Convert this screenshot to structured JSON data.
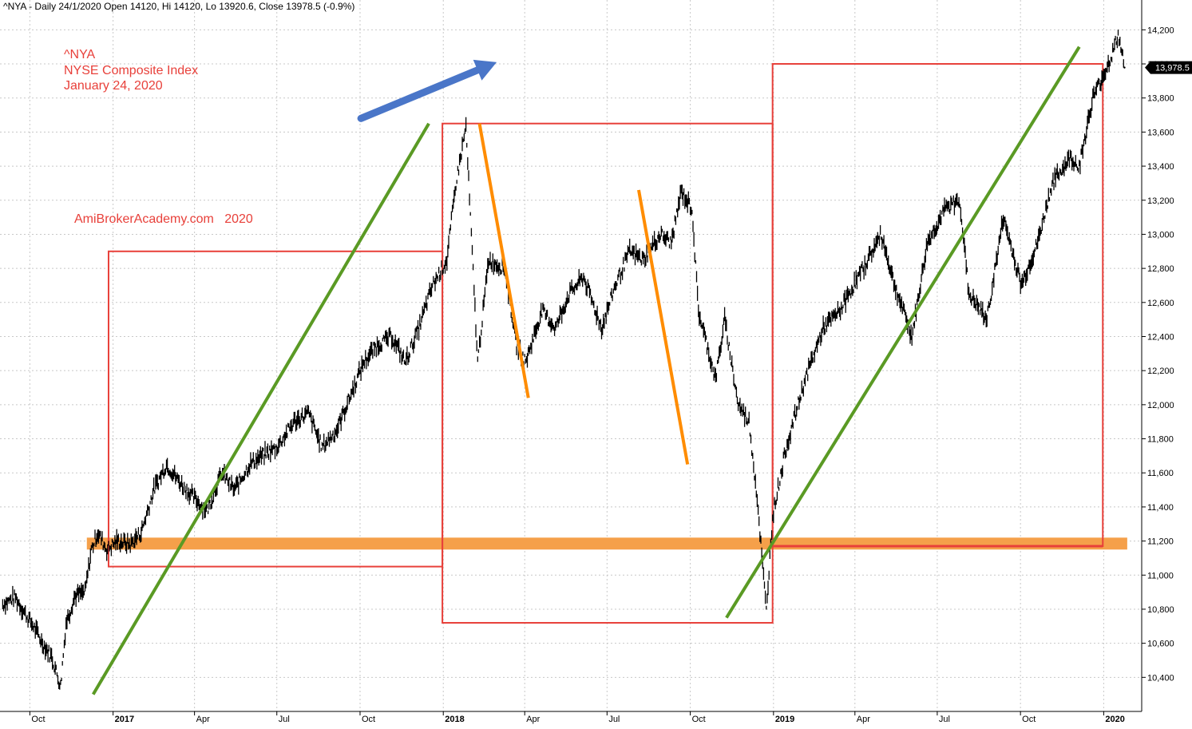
{
  "header": "^NYA - Daily 24/1/2020 Open 14120, Hi 14120, Lo 13920.6, Close 13978.5 (-0.9%)",
  "annotations": {
    "line1": "^NYA",
    "line2": "NYSE Composite Index",
    "line3": "January 24, 2020",
    "watermark": "AmiBrokerAcademy.com   2020"
  },
  "last_price_label": "13,978.5",
  "colors": {
    "price": "#000000",
    "box": "#e8403a",
    "trend_up": "#5a9a24",
    "trend_down": "#ff8c00",
    "support_band": "#f5a04a",
    "arrow": "#4a76c8",
    "label_bg": "#000000"
  },
  "chart_data": {
    "type": "line",
    "ylim": [
      10200,
      14300
    ],
    "y_ticks": [
      10400,
      10600,
      10800,
      11000,
      11200,
      11400,
      11600,
      11800,
      12000,
      12200,
      12400,
      12600,
      12800,
      13000,
      13200,
      13400,
      13600,
      13800,
      14000,
      14200
    ],
    "y_tick_labels": [
      "10,400",
      "10,600",
      "10,800",
      "11,000",
      "11,200",
      "11,400",
      "11,600",
      "11,800",
      "12,000",
      "12,200",
      "12,400",
      "12,600",
      "12,800",
      "13,000",
      "13,200",
      "13,400",
      "13,600",
      "13,800",
      "14,000",
      "14,200"
    ],
    "x_ticks": [
      {
        "label": "Oct",
        "date": "2016-10-01",
        "year": false
      },
      {
        "label": "2017",
        "date": "2017-01-01",
        "year": true
      },
      {
        "label": "Apr",
        "date": "2017-04-01",
        "year": false
      },
      {
        "label": "Jul",
        "date": "2017-07-01",
        "year": false
      },
      {
        "label": "Oct",
        "date": "2017-10-01",
        "year": false
      },
      {
        "label": "2018",
        "date": "2018-01-01",
        "year": true
      },
      {
        "label": "Apr",
        "date": "2018-04-01",
        "year": false
      },
      {
        "label": "Jul",
        "date": "2018-07-01",
        "year": false
      },
      {
        "label": "Oct",
        "date": "2018-10-01",
        "year": false
      },
      {
        "label": "2019",
        "date": "2019-01-01",
        "year": true
      },
      {
        "label": "Apr",
        "date": "2019-04-01",
        "year": false
      },
      {
        "label": "Jul",
        "date": "2019-07-01",
        "year": false
      },
      {
        "label": "Oct",
        "date": "2019-10-01",
        "year": false
      },
      {
        "label": "2020",
        "date": "2020-01-01",
        "year": true
      }
    ],
    "series": [
      {
        "values": [
          {
            "x": "2016-09-01",
            "y": 10830
          },
          {
            "x": "2016-09-15",
            "y": 10870
          },
          {
            "x": "2016-09-25",
            "y": 10780
          },
          {
            "x": "2016-10-05",
            "y": 10700
          },
          {
            "x": "2016-10-15",
            "y": 10600
          },
          {
            "x": "2016-10-25",
            "y": 10520
          },
          {
            "x": "2016-11-04",
            "y": 10350
          },
          {
            "x": "2016-11-10",
            "y": 10720
          },
          {
            "x": "2016-11-20",
            "y": 10880
          },
          {
            "x": "2016-12-01",
            "y": 10900
          },
          {
            "x": "2016-12-08",
            "y": 11150
          },
          {
            "x": "2016-12-15",
            "y": 11250
          },
          {
            "x": "2016-12-25",
            "y": 11150
          },
          {
            "x": "2017-01-05",
            "y": 11200
          },
          {
            "x": "2017-01-20",
            "y": 11180
          },
          {
            "x": "2017-02-01",
            "y": 11250
          },
          {
            "x": "2017-02-15",
            "y": 11500
          },
          {
            "x": "2017-03-01",
            "y": 11650
          },
          {
            "x": "2017-03-15",
            "y": 11550
          },
          {
            "x": "2017-04-01",
            "y": 11450
          },
          {
            "x": "2017-04-15",
            "y": 11380
          },
          {
            "x": "2017-05-01",
            "y": 11600
          },
          {
            "x": "2017-05-15",
            "y": 11500
          },
          {
            "x": "2017-06-01",
            "y": 11650
          },
          {
            "x": "2017-06-15",
            "y": 11700
          },
          {
            "x": "2017-07-01",
            "y": 11750
          },
          {
            "x": "2017-07-20",
            "y": 11900
          },
          {
            "x": "2017-08-05",
            "y": 11950
          },
          {
            "x": "2017-08-20",
            "y": 11750
          },
          {
            "x": "2017-09-05",
            "y": 11850
          },
          {
            "x": "2017-09-20",
            "y": 12050
          },
          {
            "x": "2017-10-05",
            "y": 12250
          },
          {
            "x": "2017-10-20",
            "y": 12350
          },
          {
            "x": "2017-11-05",
            "y": 12400
          },
          {
            "x": "2017-11-20",
            "y": 12250
          },
          {
            "x": "2017-12-05",
            "y": 12450
          },
          {
            "x": "2017-12-20",
            "y": 12700
          },
          {
            "x": "2018-01-05",
            "y": 12850
          },
          {
            "x": "2018-01-15",
            "y": 13300
          },
          {
            "x": "2018-01-26",
            "y": 13630
          },
          {
            "x": "2018-02-08",
            "y": 12250
          },
          {
            "x": "2018-02-20",
            "y": 12850
          },
          {
            "x": "2018-03-10",
            "y": 12800
          },
          {
            "x": "2018-03-23",
            "y": 12350
          },
          {
            "x": "2018-04-02",
            "y": 12250
          },
          {
            "x": "2018-04-20",
            "y": 12550
          },
          {
            "x": "2018-05-05",
            "y": 12450
          },
          {
            "x": "2018-05-20",
            "y": 12650
          },
          {
            "x": "2018-06-05",
            "y": 12750
          },
          {
            "x": "2018-06-25",
            "y": 12450
          },
          {
            "x": "2018-07-10",
            "y": 12700
          },
          {
            "x": "2018-07-26",
            "y": 12900
          },
          {
            "x": "2018-08-10",
            "y": 12850
          },
          {
            "x": "2018-08-29",
            "y": 13000
          },
          {
            "x": "2018-09-10",
            "y": 12950
          },
          {
            "x": "2018-09-21",
            "y": 13250
          },
          {
            "x": "2018-10-03",
            "y": 13150
          },
          {
            "x": "2018-10-10",
            "y": 12550
          },
          {
            "x": "2018-10-29",
            "y": 12150
          },
          {
            "x": "2018-11-08",
            "y": 12500
          },
          {
            "x": "2018-11-23",
            "y": 12000
          },
          {
            "x": "2018-12-05",
            "y": 11900
          },
          {
            "x": "2018-12-14",
            "y": 11450
          },
          {
            "x": "2018-12-24",
            "y": 10790
          },
          {
            "x": "2018-12-31",
            "y": 11350
          },
          {
            "x": "2019-01-15",
            "y": 11750
          },
          {
            "x": "2019-02-05",
            "y": 12150
          },
          {
            "x": "2019-02-25",
            "y": 12450
          },
          {
            "x": "2019-03-15",
            "y": 12550
          },
          {
            "x": "2019-04-10",
            "y": 12800
          },
          {
            "x": "2019-04-30",
            "y": 13000
          },
          {
            "x": "2019-05-15",
            "y": 12700
          },
          {
            "x": "2019-06-03",
            "y": 12400
          },
          {
            "x": "2019-06-20",
            "y": 12950
          },
          {
            "x": "2019-07-10",
            "y": 13150
          },
          {
            "x": "2019-07-26",
            "y": 13200
          },
          {
            "x": "2019-08-05",
            "y": 12650
          },
          {
            "x": "2019-08-25",
            "y": 12500
          },
          {
            "x": "2019-09-12",
            "y": 13100
          },
          {
            "x": "2019-10-02",
            "y": 12700
          },
          {
            "x": "2019-10-20",
            "y": 12950
          },
          {
            "x": "2019-11-05",
            "y": 13300
          },
          {
            "x": "2019-11-25",
            "y": 13450
          },
          {
            "x": "2019-12-05",
            "y": 13400
          },
          {
            "x": "2019-12-20",
            "y": 13800
          },
          {
            "x": "2020-01-02",
            "y": 13950
          },
          {
            "x": "2020-01-10",
            "y": 14050
          },
          {
            "x": "2020-01-17",
            "y": 14170
          },
          {
            "x": "2020-01-24",
            "y": 13978.5
          }
        ]
      }
    ],
    "boxes": [
      {
        "x1": "2016-12-27",
        "x2": "2017-12-31",
        "y1": 11050,
        "y2": 12900
      },
      {
        "x1": "2017-12-31",
        "x2": "2018-12-31",
        "y1": 10720,
        "y2": 13650
      },
      {
        "x1": "2018-12-31",
        "x2": "2019-12-31",
        "y1": 11170,
        "y2": 14000
      }
    ],
    "support_band": {
      "x1": "2016-12-03",
      "x2": "2020-01-27",
      "y1": 11150,
      "y2": 11220
    },
    "trendlines_up": [
      {
        "x1": "2016-12-10",
        "y1": 10300,
        "x2": "2017-12-16",
        "y2": 13650
      },
      {
        "x1": "2018-11-10",
        "y1": 10750,
        "x2": "2019-12-05",
        "y2": 14100
      }
    ],
    "trendlines_down": [
      {
        "x1": "2018-02-10",
        "y1": 13650,
        "x2": "2018-04-05",
        "y2": 12040
      },
      {
        "x1": "2018-08-05",
        "y1": 13260,
        "x2": "2018-09-28",
        "y2": 11650
      }
    ],
    "arrow": {
      "x1": "2017-10-02",
      "y1": 13680,
      "x2": "2018-03-01",
      "y2": 14010
    }
  }
}
